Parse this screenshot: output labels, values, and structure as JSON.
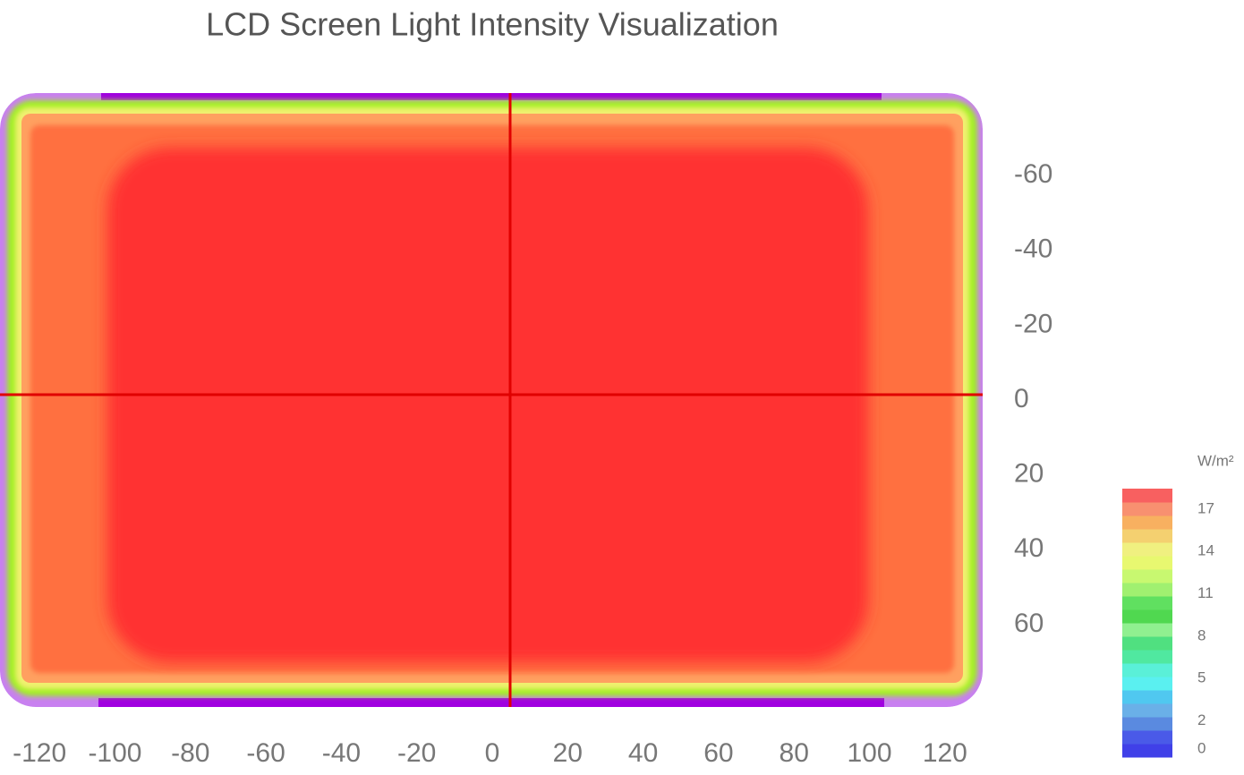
{
  "chart_data": {
    "type": "heatmap",
    "title": "LCD Screen Light Intensity Visualization",
    "xlim": [
      -130,
      130
    ],
    "xticks": [
      -120,
      -100,
      -80,
      -60,
      -40,
      -20,
      0,
      20,
      40,
      60,
      80,
      100,
      120
    ],
    "ylim": [
      -82,
      82
    ],
    "yticks": [
      -60,
      -40,
      -20,
      0,
      20,
      40,
      60
    ],
    "colorbar": {
      "label": "W/m²",
      "range": [
        0,
        18
      ],
      "ticks": [
        0,
        2,
        5,
        8,
        11,
        14,
        17
      ],
      "colors": [
        "#4040e8",
        "#4a5ae8",
        "#5a8ae0",
        "#6ab0e8",
        "#50c8f0",
        "#5af0f0",
        "#5af0d8",
        "#50e8a0",
        "#50e080",
        "#90f090",
        "#50d850",
        "#60e060",
        "#a0f070",
        "#c8f870",
        "#e8f870",
        "#f0f080",
        "#f4d070",
        "#f8b060",
        "#f89070",
        "#f86060"
      ]
    }
  }
}
